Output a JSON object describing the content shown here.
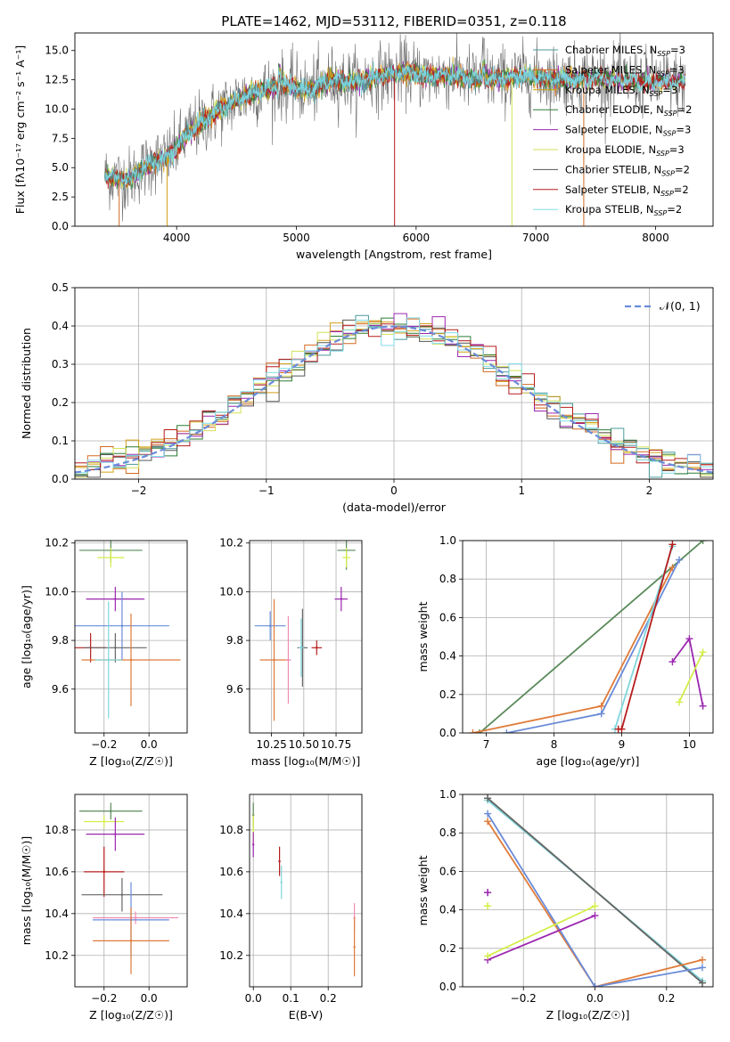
{
  "figure": {
    "title": "PLATE=1462, MJD=53112, FIBERID=0351, z=0.118"
  },
  "colors": {
    "Chabrier MILES": "#4a9999",
    "Salpeter MILES": "#d2691e",
    "Kroupa MILES": "#d4a017",
    "Chabrier ELODIE": "#2e7d32",
    "Salpeter ELODIE": "#9c27b0",
    "Kroupa ELODIE": "#d4e157",
    "Chabrier STELIB": "#555555",
    "Salpeter STELIB": "#b71c1c",
    "Kroupa STELIB": "#80deea",
    "normal": "#6a8bd8",
    "weight_blue": "#6a8bd8",
    "weight_orange": "#e07b39",
    "weight_green": "#5a8a5a",
    "weight_cyan": "#7fd6dc",
    "weight_purple": "#9c27b0",
    "weight_lime": "#d4ee4a",
    "weight_red": "#b71c1c",
    "weight_gray": "#666666",
    "extra_pink": "#f08cb4"
  },
  "chart_data": [
    {
      "id": "spectrum",
      "type": "line",
      "title": "PLATE=1462, MJD=53112, FIBERID=0351, z=0.118",
      "xlabel": "wavelength [Angstrom, rest frame]",
      "ylabel": "Flux [fλ10⁻¹⁷ erg cm⁻² s⁻¹ A⁻¹]",
      "xlim": [
        3150,
        8480
      ],
      "ylim": [
        0,
        16.5
      ],
      "xticks": [
        4000,
        5000,
        6000,
        7000,
        8000
      ],
      "yticks": [
        0.0,
        2.5,
        5.0,
        7.5,
        10.0,
        12.5,
        15.0
      ],
      "grid": false,
      "legend_position": "right",
      "series_names": [
        "Chabrier MILES, N_SSP=3",
        "Salpeter MILES, N_SSP=3",
        "Kroupa MILES, N_SSP=3",
        "Chabrier ELODIE, N_SSP=2",
        "Salpeter ELODIE, N_SSP=3",
        "Kroupa ELODIE, N_SSP=3",
        "Chabrier STELIB, N_SSP=2",
        "Salpeter STELIB, N_SSP=2",
        "Kroupa STELIB, N_SSP=2"
      ],
      "continuum_x": [
        3400,
        3600,
        3800,
        3950,
        4100,
        4300,
        4500,
        4700,
        4900,
        5100,
        5300,
        5500,
        5700,
        5900,
        6100,
        6300,
        6500,
        6700,
        6900,
        7100,
        7300,
        7500,
        7700,
        7900,
        8100,
        8250
      ],
      "continuum_y": [
        4.3,
        4.0,
        5.5,
        6.0,
        8.0,
        9.5,
        10.8,
        11.6,
        12.0,
        11.6,
        12.5,
        12.3,
        12.8,
        13.2,
        12.8,
        12.9,
        12.5,
        12.6,
        12.8,
        12.7,
        12.5,
        12.7,
        12.5,
        12.3,
        12.3,
        12.2
      ]
    },
    {
      "id": "residuals",
      "type": "line",
      "xlabel": "(data-model)/error",
      "ylabel": "Normed distribution",
      "xlim": [
        -2.5,
        2.5
      ],
      "ylim": [
        0,
        0.5
      ],
      "xticks": [
        -2,
        -1,
        0,
        1,
        2
      ],
      "yticks": [
        0.0,
        0.1,
        0.2,
        0.3,
        0.4,
        0.5
      ],
      "grid": true,
      "legend": [
        "𝒩(0, 1)"
      ],
      "legend_position": "top-right",
      "normal_curve": {
        "mu": 0,
        "sigma": 1
      }
    },
    {
      "id": "age_vs_Z",
      "type": "scatter",
      "xlabel": "Z [log₁₀(Z/Z☉)]",
      "ylabel": "age  [log₁₀(age/yr)]",
      "xlim": [
        -0.33,
        0.17
      ],
      "ylim": [
        9.42,
        10.21
      ],
      "xticks": [
        -0.2,
        0.0
      ],
      "yticks": [
        9.6,
        9.8,
        10.0,
        10.2
      ],
      "grid": true,
      "points": [
        {
          "x": -0.17,
          "y": 10.17,
          "xerr": 0.14,
          "yerr": 0.05,
          "color": "weight_green"
        },
        {
          "x": -0.17,
          "y": 10.14,
          "xerr": 0.06,
          "yerr": 0.04,
          "color": "weight_lime"
        },
        {
          "x": -0.15,
          "y": 9.97,
          "xerr": 0.13,
          "yerr": 0.05,
          "color": "weight_purple"
        },
        {
          "x": -0.12,
          "y": 9.86,
          "xerr": 0.21,
          "yerr": 0.14,
          "color": "weight_blue"
        },
        {
          "x": -0.26,
          "y": 9.77,
          "xerr": 0.07,
          "yerr": 0.06,
          "color": "weight_red"
        },
        {
          "x": -0.15,
          "y": 9.77,
          "xerr": 0.14,
          "yerr": 0.06,
          "color": "weight_gray"
        },
        {
          "x": -0.08,
          "y": 9.72,
          "xerr": 0.22,
          "yerr": 0.19,
          "color": "weight_orange"
        },
        {
          "x": -0.18,
          "y": 9.72,
          "xerr": 0.06,
          "yerr": 0.24,
          "color": "weight_cyan"
        }
      ]
    },
    {
      "id": "age_vs_mass",
      "type": "scatter",
      "xlabel": "mass [log₁₀(M/M☉)]",
      "ylabel": "",
      "xlim": [
        10.08,
        10.95
      ],
      "ylim": [
        9.42,
        10.21
      ],
      "xticks": [
        10.25,
        10.5,
        10.75
      ],
      "yticks": [
        9.6,
        9.8,
        10.0,
        10.2
      ],
      "grid": true,
      "points": [
        {
          "x": 10.83,
          "y": 10.17,
          "xerr": 0.07,
          "yerr": 0.08,
          "color": "weight_green"
        },
        {
          "x": 10.83,
          "y": 10.14,
          "xerr": 0.03,
          "yerr": 0.04,
          "color": "weight_lime"
        },
        {
          "x": 10.79,
          "y": 9.97,
          "xerr": 0.05,
          "yerr": 0.05,
          "color": "weight_purple"
        },
        {
          "x": 10.24,
          "y": 9.86,
          "xerr": 0.12,
          "yerr": 0.06,
          "color": "weight_blue"
        },
        {
          "x": 10.6,
          "y": 9.77,
          "xerr": 0.04,
          "yerr": 0.03,
          "color": "weight_red"
        },
        {
          "x": 10.49,
          "y": 9.77,
          "xerr": 0.04,
          "yerr": 0.16,
          "color": "weight_gray"
        },
        {
          "x": 10.27,
          "y": 9.72,
          "xerr": 0.11,
          "yerr": 0.25,
          "color": "weight_orange"
        },
        {
          "x": 10.38,
          "y": 9.72,
          "xerr": 0.02,
          "yerr": 0.18,
          "color": "extra_pink"
        },
        {
          "x": 10.48,
          "y": 9.77,
          "xerr": 0.02,
          "yerr": 0.12,
          "color": "weight_cyan"
        }
      ]
    },
    {
      "id": "weight_vs_age",
      "type": "line",
      "xlabel": "age  [log₁₀(age/yr)]",
      "ylabel": "mass weight",
      "xlim": [
        6.65,
        10.35
      ],
      "ylim": [
        0,
        1
      ],
      "xticks": [
        7,
        8,
        9,
        10
      ],
      "yticks": [
        0.0,
        0.2,
        0.4,
        0.6,
        0.8,
        1.0
      ],
      "grid": true,
      "series": [
        {
          "color": "weight_green",
          "x": [
            6.9,
            10.2
          ],
          "y": [
            0.0,
            1.0
          ]
        },
        {
          "color": "weight_orange",
          "x": [
            6.8,
            8.7,
            9.75
          ],
          "y": [
            0.0,
            0.14,
            0.86
          ]
        },
        {
          "color": "weight_blue",
          "x": [
            7.3,
            8.7,
            9.85
          ],
          "y": [
            0.0,
            0.1,
            0.9
          ]
        },
        {
          "color": "weight_cyan",
          "x": [
            8.9,
            9.75
          ],
          "y": [
            0.02,
            0.97
          ]
        },
        {
          "color": "weight_red",
          "x": [
            8.95,
            9.0,
            9.75
          ],
          "y": [
            0.02,
            0.02,
            0.98
          ]
        },
        {
          "color": "weight_purple",
          "x": [
            9.75,
            10.0,
            10.2
          ],
          "y": [
            0.37,
            0.49,
            0.14
          ]
        },
        {
          "color": "weight_lime",
          "x": [
            9.85,
            10.2
          ],
          "y": [
            0.16,
            0.42
          ]
        }
      ]
    },
    {
      "id": "mass_vs_Z",
      "type": "scatter",
      "xlabel": "Z [log₁₀(Z/Z☉)]",
      "ylabel": "mass [log₁₀(M/M☉)]",
      "xlim": [
        -0.33,
        0.17
      ],
      "ylim": [
        10.05,
        10.97
      ],
      "xticks": [
        -0.2,
        0.0
      ],
      "yticks": [
        10.2,
        10.4,
        10.6,
        10.8
      ],
      "grid": true,
      "points": [
        {
          "x": -0.17,
          "y": 10.89,
          "xerr": 0.14,
          "yerr": 0.04,
          "color": "weight_green"
        },
        {
          "x": -0.2,
          "y": 10.84,
          "xerr": 0.09,
          "yerr": 0.03,
          "color": "weight_lime"
        },
        {
          "x": -0.15,
          "y": 10.78,
          "xerr": 0.13,
          "yerr": 0.08,
          "color": "weight_purple"
        },
        {
          "x": -0.2,
          "y": 10.6,
          "xerr": 0.09,
          "yerr": 0.12,
          "color": "weight_red"
        },
        {
          "x": -0.12,
          "y": 10.49,
          "xerr": 0.18,
          "yerr": 0.08,
          "color": "weight_gray"
        },
        {
          "x": -0.06,
          "y": 10.38,
          "xerr": 0.19,
          "yerr": 0.03,
          "color": "extra_pink"
        },
        {
          "x": -0.08,
          "y": 10.37,
          "xerr": 0.17,
          "yerr": 0.18,
          "color": "weight_blue"
        },
        {
          "x": -0.08,
          "y": 10.27,
          "xerr": 0.17,
          "yerr": 0.16,
          "color": "weight_orange"
        }
      ]
    },
    {
      "id": "mass_vs_ebv",
      "type": "scatter",
      "xlabel": "E(B-V)",
      "ylabel": "",
      "xlim": [
        -0.01,
        0.29
      ],
      "ylim": [
        10.05,
        10.97
      ],
      "xticks": [
        0.0,
        0.1,
        0.2
      ],
      "yticks": [
        10.2,
        10.4,
        10.6,
        10.8
      ],
      "grid": true,
      "points": [
        {
          "x": 0.0,
          "y": 10.87,
          "xerr": 0.0,
          "yerr": 0.06,
          "color": "weight_green"
        },
        {
          "x": 0.0,
          "y": 10.8,
          "xerr": 0.0,
          "yerr": 0.07,
          "color": "weight_lime"
        },
        {
          "x": 0.0,
          "y": 10.73,
          "xerr": 0.0,
          "yerr": 0.06,
          "color": "weight_purple"
        },
        {
          "x": 0.07,
          "y": 10.65,
          "xerr": 0.0,
          "yerr": 0.07,
          "color": "weight_red"
        },
        {
          "x": 0.075,
          "y": 10.55,
          "xerr": 0.0,
          "yerr": 0.08,
          "color": "weight_cyan"
        },
        {
          "x": 0.27,
          "y": 10.38,
          "xerr": 0.0,
          "yerr": 0.07,
          "color": "extra_pink"
        },
        {
          "x": 0.27,
          "y": 10.24,
          "xerr": 0.0,
          "yerr": 0.14,
          "color": "weight_orange"
        }
      ]
    },
    {
      "id": "weight_vs_Z",
      "type": "line",
      "xlabel": "Z [log₁₀(Z/Z☉)]",
      "ylabel": "mass weight",
      "xlim": [
        -0.37,
        0.33
      ],
      "ylim": [
        0,
        1
      ],
      "xticks": [
        -0.2,
        0.0,
        0.2
      ],
      "yticks": [
        0.0,
        0.2,
        0.4,
        0.6,
        0.8,
        1.0
      ],
      "grid": true,
      "series": [
        {
          "color": "weight_green",
          "x": [
            -0.3,
            0.3
          ],
          "y": [
            0.98,
            0.02
          ]
        },
        {
          "color": "weight_cyan",
          "x": [
            -0.3,
            0.3
          ],
          "y": [
            0.97,
            0.03
          ]
        },
        {
          "color": "weight_gray",
          "x": [
            -0.3,
            0.3
          ],
          "y": [
            0.98,
            0.02
          ]
        },
        {
          "color": "weight_orange",
          "x": [
            -0.3,
            0.0,
            0.3
          ],
          "y": [
            0.86,
            0.0,
            0.14
          ]
        },
        {
          "color": "weight_blue",
          "x": [
            -0.3,
            0.0,
            0.3
          ],
          "y": [
            0.9,
            0.0,
            0.1
          ]
        },
        {
          "color": "weight_purple",
          "x": [
            -0.3,
            0.0
          ],
          "y": [
            0.14,
            0.37
          ]
        },
        {
          "color": "weight_lime",
          "x": [
            -0.3,
            0.0
          ],
          "y": [
            0.16,
            0.42
          ]
        },
        {
          "color": "weight_purple",
          "x": [
            -0.3,
            -0.3
          ],
          "y": [
            0.49,
            0.49
          ]
        },
        {
          "color": "weight_lime",
          "x": [
            -0.3,
            -0.3
          ],
          "y": [
            0.42,
            0.42
          ]
        }
      ]
    }
  ]
}
